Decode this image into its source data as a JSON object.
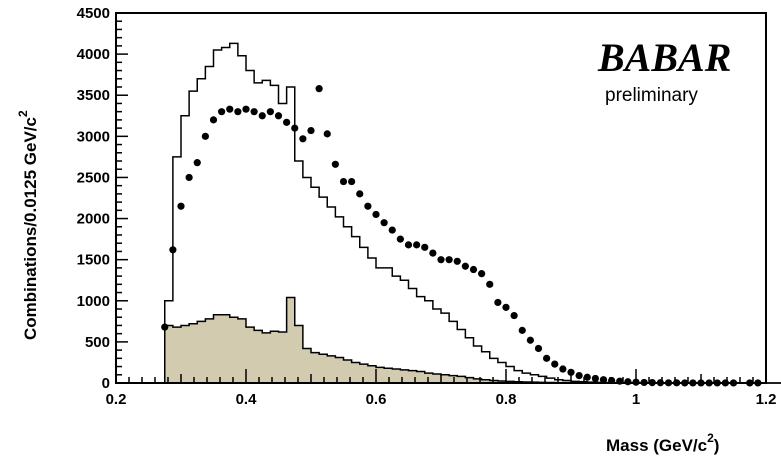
{
  "chart_data": {
    "type": "bar",
    "title": "",
    "xlabel": "Mass (GeV/c",
    "xlabel_sup": "2",
    "xlabel_close": ")",
    "ylabel": "Combinations/0.0125 GeV/c",
    "ylabel_sup": "2",
    "xlim": [
      0.2,
      1.2
    ],
    "ylim": [
      0,
      4500
    ],
    "bin_width": 0.0125,
    "x_ticks": [
      "0.2",
      "0.4",
      "0.6",
      "0.8",
      "1",
      "1.2"
    ],
    "x_tick_values": [
      0.2,
      0.4,
      0.6,
      0.8,
      1.0,
      1.2
    ],
    "y_ticks": [
      "0",
      "500",
      "1000",
      "1500",
      "2000",
      "2500",
      "3000",
      "3500",
      "4000",
      "4500"
    ],
    "y_tick_values": [
      0,
      500,
      1000,
      1500,
      2000,
      2500,
      3000,
      3500,
      4000,
      4500
    ],
    "grid": false,
    "legend": "none",
    "annotations": {
      "experiment_logo": "BABAR",
      "status": "preliminary"
    },
    "colors": {
      "filled_histogram": "#d3cbb0",
      "lines": "#000000",
      "points": "#000000"
    },
    "series": [
      {
        "style": "open-histogram",
        "bin_start": 0.275,
        "values": [
          1000,
          2750,
          3250,
          3550,
          3700,
          3850,
          4050,
          4080,
          4130,
          3980,
          3800,
          3650,
          3680,
          3620,
          3400,
          3600,
          2700,
          2500,
          2380,
          2260,
          2140,
          2020,
          1900,
          1780,
          1650,
          1520,
          1400,
          1400,
          1300,
          1250,
          1150,
          1050,
          1000,
          900,
          850,
          750,
          650,
          550,
          450,
          380,
          300,
          250,
          200,
          150,
          120,
          100,
          80,
          60,
          40,
          30,
          20,
          15,
          10,
          8,
          6,
          5,
          4,
          3,
          2,
          1,
          1,
          0,
          0,
          0,
          0,
          0,
          0,
          0,
          0,
          0,
          0,
          0,
          0,
          0,
          0,
          0,
          0,
          0,
          0,
          0,
          0,
          0,
          0,
          0,
          0,
          0,
          0,
          0,
          0,
          0,
          0,
          0
        ]
      },
      {
        "style": "filled-histogram",
        "bin_start": 0.275,
        "values": [
          700,
          680,
          700,
          720,
          750,
          780,
          830,
          830,
          800,
          780,
          680,
          640,
          610,
          630,
          620,
          1040,
          700,
          420,
          370,
          350,
          330,
          310,
          280,
          250,
          230,
          210,
          190,
          180,
          170,
          160,
          150,
          140,
          120,
          110,
          100,
          90,
          80,
          65,
          50,
          40,
          30,
          25,
          20,
          15,
          12,
          10,
          8,
          6,
          5,
          4,
          3,
          2,
          1,
          1,
          0,
          0,
          0,
          0,
          0,
          0,
          0,
          0,
          0,
          0,
          0,
          0,
          0,
          0,
          0,
          0,
          0,
          0,
          0,
          0,
          0,
          0,
          0,
          0,
          0,
          0,
          0,
          0,
          0,
          0,
          0,
          0,
          0,
          0,
          0,
          0,
          0,
          0
        ]
      },
      {
        "style": "points",
        "x": [
          0.275,
          0.2875,
          0.3,
          0.3125,
          0.325,
          0.3375,
          0.35,
          0.3625,
          0.375,
          0.3875,
          0.4,
          0.4125,
          0.425,
          0.4375,
          0.45,
          0.4625,
          0.475,
          0.4875,
          0.5,
          0.5125,
          0.525,
          0.5375,
          0.55,
          0.5625,
          0.575,
          0.5875,
          0.6,
          0.6125,
          0.625,
          0.6375,
          0.65,
          0.6625,
          0.675,
          0.6875,
          0.7,
          0.7125,
          0.725,
          0.7375,
          0.75,
          0.7625,
          0.775,
          0.7875,
          0.8,
          0.8125,
          0.825,
          0.8375,
          0.85,
          0.8625,
          0.875,
          0.8875,
          0.9,
          0.9125,
          0.925,
          0.9375,
          0.95,
          0.9625,
          0.975,
          0.9875,
          1.0,
          1.0125,
          1.025,
          1.0375,
          1.05,
          1.0625,
          1.075,
          1.0875,
          1.1,
          1.1125,
          1.125,
          1.1375,
          1.15,
          1.175,
          1.1875
        ],
        "y": [
          680,
          1620,
          2150,
          2500,
          2680,
          3000,
          3200,
          3300,
          3330,
          3300,
          3330,
          3300,
          3250,
          3300,
          3250,
          3170,
          3100,
          2970,
          3070,
          3580,
          3030,
          2660,
          2450,
          2450,
          2300,
          2150,
          2050,
          1950,
          1860,
          1750,
          1680,
          1680,
          1650,
          1580,
          1500,
          1500,
          1480,
          1420,
          1380,
          1330,
          1200,
          980,
          920,
          820,
          640,
          520,
          420,
          300,
          230,
          170,
          130,
          90,
          70,
          55,
          40,
          30,
          22,
          15,
          10,
          7,
          5,
          3,
          2,
          2,
          1,
          1,
          1,
          1,
          1,
          1,
          1,
          1,
          1
        ]
      }
    ]
  }
}
